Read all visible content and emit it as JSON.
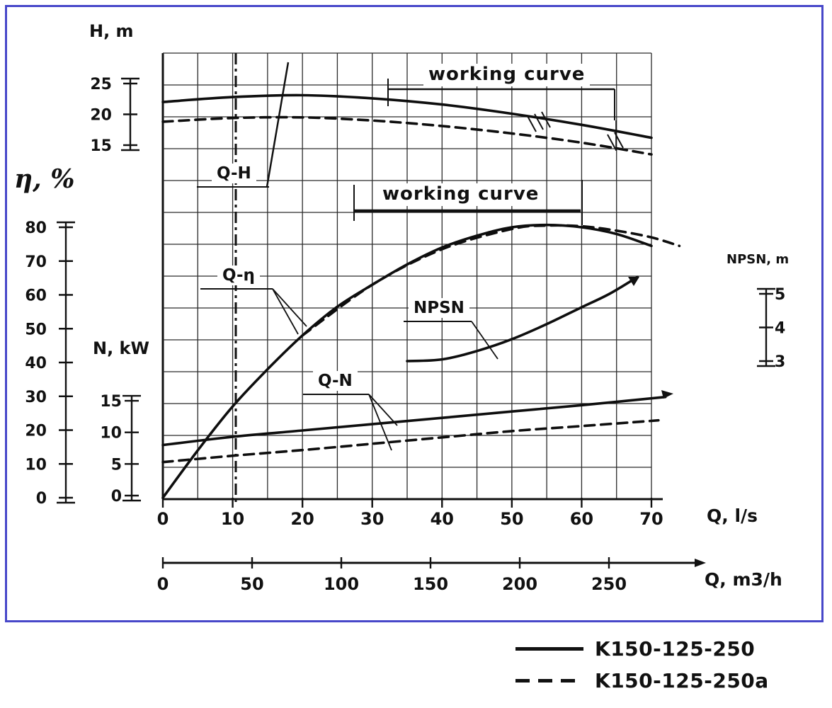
{
  "axes": {
    "h": {
      "label": "H, m",
      "ticks": [
        25,
        20,
        15
      ],
      "range": [
        15,
        25
      ]
    },
    "eta": {
      "label": "η, %",
      "ticks": [
        80,
        70,
        60,
        50,
        40,
        30,
        20,
        10,
        0
      ],
      "range": [
        0,
        80
      ]
    },
    "n": {
      "label": "N, kW",
      "ticks": [
        15,
        10,
        5,
        0
      ],
      "range": [
        0,
        15
      ]
    },
    "npsn": {
      "label": "NPSN, m",
      "ticks": [
        5,
        4,
        3
      ],
      "range": [
        3,
        5
      ]
    },
    "q_ls": {
      "label": "Q, l/s",
      "ticks": [
        0,
        10,
        20,
        30,
        40,
        50,
        60,
        70
      ],
      "range": [
        0,
        70
      ]
    },
    "q_m3h": {
      "label": "Q, m3/h",
      "ticks": [
        0,
        50,
        100,
        150,
        200,
        250
      ],
      "range": [
        0,
        250
      ]
    }
  },
  "annotations": {
    "working_curve_top": "working curve",
    "working_curve_mid": "working curve",
    "q_h": "Q-H",
    "q_eta": "Q-η",
    "q_n": "Q-N",
    "npsn": "NPSN"
  },
  "legend": {
    "items": [
      {
        "label": "K150-125-250",
        "style": "solid"
      },
      {
        "label": "K150-125-250a",
        "style": "dashed"
      }
    ]
  },
  "chart_data": {
    "type": "line",
    "x_axis": {
      "label": "Q, l/s",
      "range": [
        0,
        75
      ]
    },
    "secondary_x_axis": {
      "label": "Q, m3/h",
      "range": [
        0,
        250
      ]
    },
    "grid": true,
    "series": [
      {
        "name": "Q-H K150-125-250",
        "axis": "h",
        "style": "solid",
        "x": [
          0,
          10,
          20,
          30,
          40,
          50,
          60,
          70
        ],
        "y": [
          22,
          22.8,
          23.1,
          22.6,
          21.6,
          20.1,
          18.3,
          16.2
        ]
      },
      {
        "name": "Q-H K150-125-250a",
        "axis": "h",
        "style": "dashed",
        "x": [
          0,
          10,
          20,
          30,
          40,
          50,
          60,
          70
        ],
        "y": [
          18.8,
          19.4,
          19.5,
          19,
          18.1,
          16.9,
          15.4,
          13.5
        ]
      },
      {
        "name": "Q-η K150-125-250",
        "axis": "eta",
        "style": "solid",
        "x": [
          0,
          5,
          10,
          15,
          20,
          25,
          30,
          35,
          40,
          45,
          50,
          55,
          60,
          65,
          70
        ],
        "y": [
          0,
          14,
          27,
          38,
          48,
          56.5,
          63,
          69,
          74,
          77.5,
          80,
          80.7,
          80,
          78,
          74.5
        ]
      },
      {
        "name": "Q-η K150-125-250a",
        "axis": "eta",
        "style": "dashed",
        "x": [
          20,
          30,
          40,
          50,
          55,
          60,
          65,
          70,
          74
        ],
        "y": [
          48,
          63,
          73.5,
          79.5,
          80.5,
          80.3,
          79,
          77,
          74.5
        ]
      },
      {
        "name": "Q-N K150-125-250",
        "axis": "n",
        "style": "solid",
        "x": [
          0,
          10,
          20,
          30,
          40,
          50,
          60,
          72
        ],
        "y": [
          8,
          9.3,
          10.3,
          11.3,
          12.3,
          13.3,
          14.3,
          15.6
        ]
      },
      {
        "name": "Q-N K150-125-250a",
        "axis": "n",
        "style": "dashed",
        "x": [
          0,
          10,
          20,
          30,
          40,
          50,
          60,
          71
        ],
        "y": [
          5.3,
          6.3,
          7.2,
          8.2,
          9.2,
          10.2,
          11,
          11.9
        ]
      },
      {
        "name": "NPSN",
        "axis": "npsn",
        "style": "solid",
        "x": [
          35,
          40,
          45,
          50,
          55,
          60,
          64,
          68
        ],
        "y": [
          3,
          3.05,
          3.3,
          3.65,
          4.1,
          4.6,
          5,
          5.5
        ]
      }
    ]
  }
}
